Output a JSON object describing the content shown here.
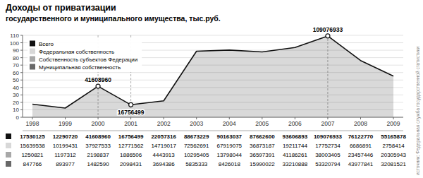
{
  "chart_data": {
    "type": "line",
    "title": "Доходы от приватизации",
    "subtitle": "государственного и муниципального имущества, тыс.руб.",
    "source": "источник: Федеральная служба государственной статистики",
    "categories": [
      "1998",
      "1999",
      "2000",
      "2001",
      "2002",
      "2003",
      "2004",
      "2005",
      "2006",
      "2007",
      "2008",
      "2009"
    ],
    "series": [
      {
        "name": "Всего",
        "type": "area",
        "color": "#111111",
        "values": [
          17.530125,
          12.29072,
          41.60896,
          16.756499,
          22.057316,
          88.673229,
          90.163037,
          87.6626,
          93.606893,
          109.076933,
          76.12277,
          55.165878
        ],
        "value_labels": [
          "17530125",
          "12290720",
          "41608960",
          "16756499",
          "22057316",
          "88673229",
          "90163037",
          "87662600",
          "93606893",
          "109076933",
          "76122770",
          "55165878"
        ]
      },
      {
        "name": "Федеральная собственность",
        "type": "table",
        "color": "#d8d8d8",
        "values": [
          15.639538,
          10.199431,
          37.927533,
          12.771562,
          14.719017,
          72.562691,
          67.919075,
          36.873187,
          19.211744,
          17.752734,
          6.686891,
          2.758414
        ],
        "value_labels": [
          "15639538",
          "10199431",
          "37927533",
          "12771562",
          "14719017",
          "72562691",
          "67919075",
          "36873187",
          "19211744",
          "17752734",
          "6686891",
          "2758414"
        ]
      },
      {
        "name": "Собственность субъектов Федерации",
        "type": "table",
        "color": "#a8a8a8",
        "values": [
          1.250821,
          1.197312,
          2.198837,
          1.886506,
          4.443913,
          10.295405,
          13.798044,
          36.597391,
          41.186261,
          38.003405,
          23.457446,
          20.305943
        ],
        "value_labels": [
          "1250821",
          "1197312",
          "2198837",
          "1886506",
          "4443913",
          "10295405",
          "13798044",
          "36597391",
          "41186261",
          "38003405",
          "23457446",
          "20305943"
        ]
      },
      {
        "name": "Муниципальная собственность",
        "type": "table",
        "color": "#686868",
        "values": [
          0.847766,
          0.893977,
          1.48259,
          2.098431,
          3.694386,
          5.835333,
          8.426018,
          15.990022,
          33.210888,
          53.320794,
          43.977841,
          32.081521
        ],
        "value_labels": [
          "847766",
          "893977",
          "1482590",
          "2098431",
          "3694386",
          "5835333",
          "8426018",
          "15990022",
          "33210888",
          "53320794",
          "43977841",
          "32081521"
        ]
      }
    ],
    "annotations": [
      {
        "category": "2000",
        "label": "41608960"
      },
      {
        "category": "2001",
        "label": "16756499"
      },
      {
        "category": "2007",
        "label": "109076933"
      }
    ],
    "ylim": [
      0,
      110
    ],
    "yticks": [
      0,
      10,
      20,
      30,
      40,
      50,
      60,
      70,
      80,
      90,
      100,
      110
    ],
    "grid": true,
    "legend": "upper left"
  }
}
